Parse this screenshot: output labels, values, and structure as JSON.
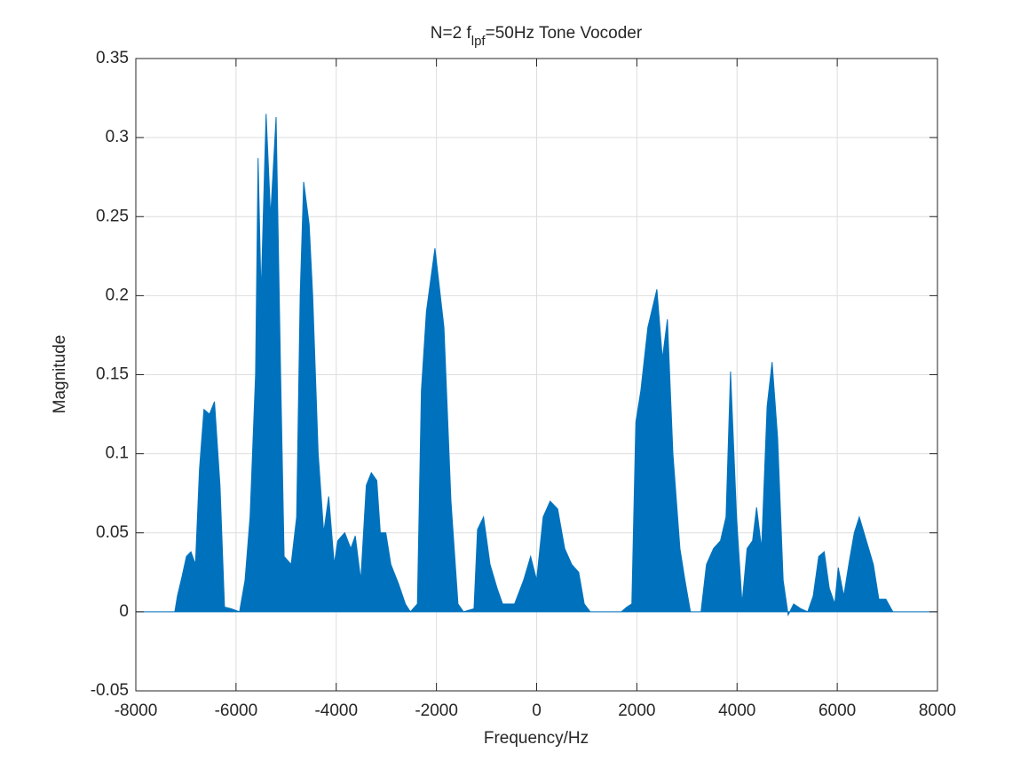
{
  "chart_data": {
    "type": "area",
    "title": [
      "N=2 f",
      "lpf",
      "=50Hz Tone Vocoder"
    ],
    "x_label": "Frequency/Hz",
    "y_label": "Magnitude",
    "xlim": [
      -8000,
      8000
    ],
    "xticks": [
      -8000,
      -6000,
      -4000,
      -2000,
      0,
      2000,
      4000,
      6000,
      8000
    ],
    "ylim": [
      -0.05,
      0.35
    ],
    "yticks": [
      -0.05,
      0,
      0.05,
      0.1,
      0.15,
      0.2,
      0.25,
      0.3,
      0.35
    ],
    "grid": true,
    "color": "#0072bd",
    "x": [
      -8000,
      -7222,
      -7170,
      -7080,
      -6990,
      -6900,
      -6810,
      -6730,
      -6640,
      -6530,
      -6430,
      -6320,
      -6230,
      -6100,
      -5930,
      -5820,
      -5720,
      -5610,
      -5560,
      -5500,
      -5400,
      -5310,
      -5200,
      -5110,
      -5040,
      -4900,
      -4790,
      -4720,
      -4650,
      -4540,
      -4470,
      -4360,
      -4250,
      -4150,
      -4040,
      -3970,
      -3830,
      -3710,
      -3620,
      -3510,
      -3400,
      -3300,
      -3190,
      -3120,
      -3010,
      -2910,
      -2760,
      -2620,
      -2520,
      -2380,
      -2300,
      -2200,
      -2030,
      -1850,
      -1710,
      -1570,
      -1460,
      -1250,
      -1180,
      -1060,
      -930,
      -790,
      -680,
      -440,
      -260,
      -120,
      0,
      130,
      270,
      420,
      560,
      700,
      840,
      950,
      1070,
      1690,
      1800,
      1900,
      1980,
      2080,
      2220,
      2400,
      2510,
      2610,
      2720,
      2860,
      2960,
      3070,
      3280,
      3390,
      3530,
      3670,
      3780,
      3870,
      3990,
      4100,
      4200,
      4310,
      4390,
      4490,
      4600,
      4700,
      4810,
      4920,
      5020,
      5130,
      5270,
      5410,
      5520,
      5630,
      5740,
      5840,
      5950,
      6020,
      6130,
      6230,
      6340,
      6440,
      6580,
      6720,
      6830,
      6970,
      7110,
      8000
    ],
    "values": [
      0,
      0,
      0.01,
      0.022,
      0.035,
      0.038,
      0.03,
      0.09,
      0.128,
      0.125,
      0.133,
      0.08,
      0.003,
      0.002,
      0,
      0.02,
      0.06,
      0.15,
      0.287,
      0.2,
      0.315,
      0.25,
      0.313,
      0.15,
      0.035,
      0.03,
      0.06,
      0.2,
      0.272,
      0.245,
      0.2,
      0.1,
      0.05,
      0.073,
      0.03,
      0.045,
      0.05,
      0.04,
      0.048,
      0.02,
      0.08,
      0.088,
      0.083,
      0.05,
      0.05,
      0.03,
      0.018,
      0.005,
      0,
      0.005,
      0.14,
      0.19,
      0.23,
      0.18,
      0.07,
      0.005,
      0,
      0.002,
      0.052,
      0.06,
      0.03,
      0.015,
      0.005,
      0.005,
      0.02,
      0.035,
      0.02,
      0.06,
      0.07,
      0.065,
      0.04,
      0.03,
      0.025,
      0.005,
      0,
      0,
      0.003,
      0.005,
      0.12,
      0.14,
      0.18,
      0.204,
      0.16,
      0.185,
      0.1,
      0.04,
      0.02,
      0,
      0,
      0.03,
      0.04,
      0.045,
      0.06,
      0.152,
      0.06,
      0.005,
      0.04,
      0.045,
      0.066,
      0.04,
      0.13,
      0.158,
      0.11,
      0.02,
      -0.002,
      0.005,
      0.002,
      0,
      0.01,
      0.035,
      0.038,
      0.015,
      0.005,
      0.028,
      0.01,
      0.03,
      0.05,
      0.06,
      0.045,
      0.03,
      0.008,
      0.008,
      0,
      0
    ]
  }
}
